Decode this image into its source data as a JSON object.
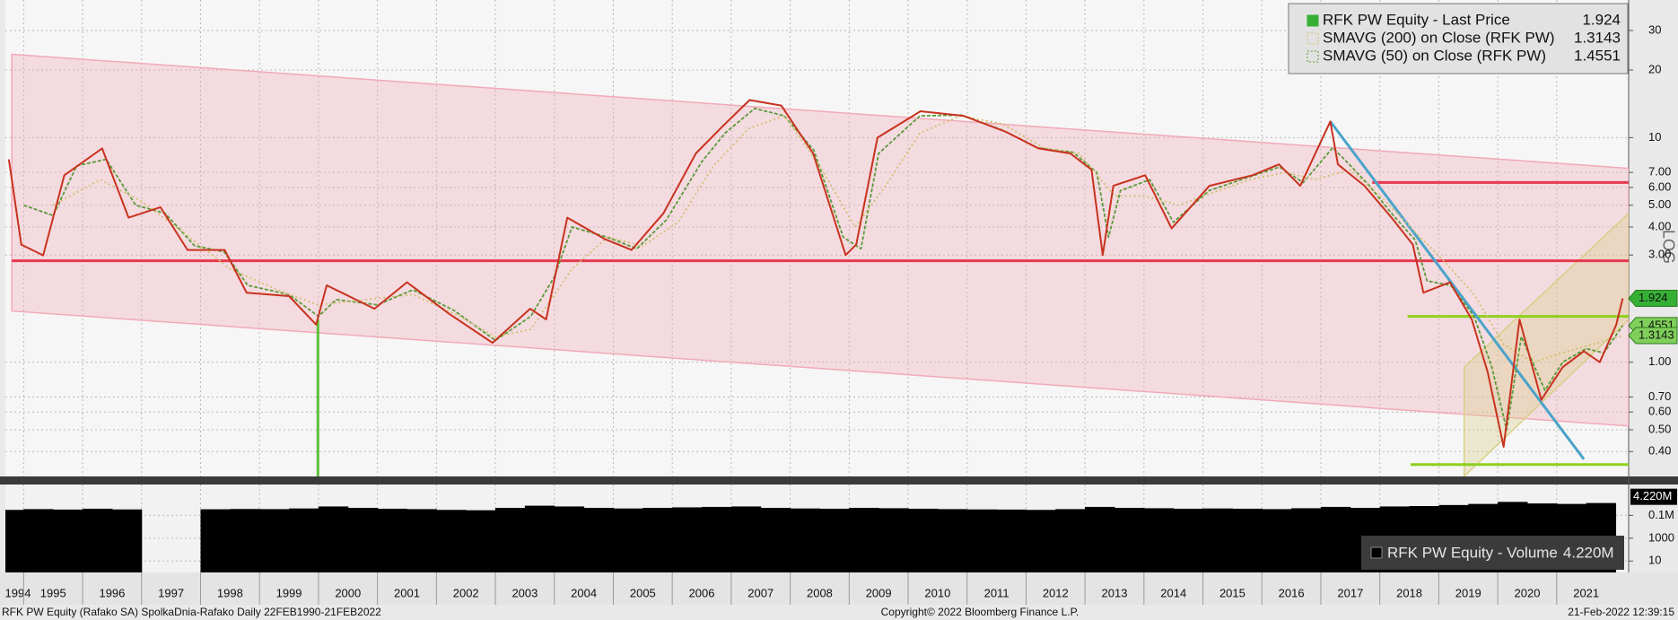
{
  "chart_data": [
    {
      "type": "line",
      "ylabel": "LOG",
      "log_y": true,
      "grid": true,
      "legend_position": "top-right",
      "xlim": [
        1994.69,
        2022.22
      ],
      "ylim": [
        0.31,
        41
      ],
      "xticks": [
        1994,
        1995,
        1996,
        1997,
        1998,
        1999,
        2000,
        2001,
        2002,
        2003,
        2004,
        2005,
        2006,
        2007,
        2008,
        2009,
        2010,
        2011,
        2012,
        2013,
        2014,
        2015,
        2016,
        2017,
        2018,
        2019,
        2020,
        2021
      ],
      "yticks": [
        30,
        20,
        10,
        {
          "value": 7,
          "label": "7.00"
        },
        {
          "value": 6,
          "label": "6.00"
        },
        {
          "value": 5,
          "label": "5.00"
        },
        {
          "value": 4,
          "label": "4.00"
        },
        {
          "value": 3,
          "label": "3.00"
        },
        {
          "value": 1,
          "label": "1.00"
        },
        {
          "value": 0.7,
          "label": "0.70"
        },
        {
          "value": 0.6,
          "label": "0.60"
        },
        {
          "value": 0.5,
          "label": "0.50"
        },
        {
          "value": 0.4,
          "label": "0.40"
        }
      ],
      "series": [
        {
          "name": "RFK PW Equity - Last Price",
          "color": "#35b035",
          "line_color": "#c8321e",
          "last_value": 1.924,
          "x": [
            1994.75,
            1994.96,
            1995.33,
            1995.69,
            1996.33,
            1996.78,
            1997.32,
            1997.78,
            1998.41,
            1998.78,
            1999.5,
            1999.96,
            2000.14,
            2000.95,
            2001.5,
            2002.22,
            2002.95,
            2003.59,
            2003.86,
            2004.22,
            2004.86,
            2005.31,
            2005.85,
            2006.4,
            2006.85,
            2007.31,
            2007.85,
            2008.39,
            2008.94,
            2009.12,
            2009.48,
            2010.21,
            2010.94,
            2011.66,
            2012.21,
            2012.75,
            2013.11,
            2013.3,
            2013.48,
            2014.02,
            2014.47,
            2015.11,
            2015.84,
            2016.29,
            2016.65,
            2017.16,
            2017.29,
            2017.74,
            2018.2,
            2018.56,
            2018.74,
            2019.19,
            2019.56,
            2019.83,
            2020.1,
            2020.37,
            2020.74,
            2021.1,
            2021.46,
            2021.73,
            2022.01,
            2022.12
          ],
          "values": [
            8.0,
            3.34,
            2.99,
            6.8,
            8.95,
            4.4,
            4.9,
            3.16,
            3.16,
            2.04,
            1.97,
            1.47,
            2.2,
            1.73,
            2.27,
            1.64,
            1.22,
            1.73,
            1.55,
            4.4,
            3.53,
            3.16,
            4.6,
            8.5,
            11.2,
            14.7,
            13.9,
            8.5,
            3.0,
            3.34,
            10,
            13.1,
            12.5,
            10.6,
            8.95,
            8.5,
            7.2,
            3.0,
            6.1,
            6.8,
            3.94,
            6.1,
            6.8,
            7.6,
            6.1,
            11.8,
            7.6,
            6.1,
            4.4,
            3.34,
            2.04,
            2.27,
            1.55,
            0.9,
            0.42,
            1.55,
            0.68,
            0.95,
            1.12,
            1.0,
            1.47,
            1.924
          ]
        },
        {
          "name": "SMAVG (200)  on Close (RFK PW)",
          "color": "#cfc070",
          "last_value": 1.3143,
          "x": [
            1995.5,
            1996.3,
            1997.0,
            1997.7,
            1998.5,
            1999.3,
            2000.0,
            2000.8,
            2001.6,
            2002.4,
            2003.0,
            2003.6,
            2004.3,
            2004.9,
            2005.5,
            2006.1,
            2006.7,
            2007.3,
            2007.9,
            2008.5,
            2009.1,
            2009.6,
            2010.2,
            2010.9,
            2011.6,
            2012.3,
            2012.9,
            2013.5,
            2014.0,
            2014.6,
            2015.1,
            2015.8,
            2016.4,
            2016.9,
            2017.5,
            2018.1,
            2018.6,
            2019.1,
            2019.6,
            2020.1,
            2020.6,
            2021.1,
            2021.6,
            2022.12
          ],
          "values": [
            5.0,
            6.5,
            5.2,
            3.8,
            2.6,
            2.1,
            1.8,
            1.9,
            2.0,
            1.6,
            1.3,
            1.4,
            2.6,
            3.6,
            3.3,
            4.2,
            7.5,
            11.0,
            12.5,
            7.5,
            4.0,
            6.0,
            10.5,
            12.5,
            11.5,
            9.0,
            8.5,
            5.5,
            5.5,
            5.0,
            5.6,
            6.5,
            7.0,
            6.5,
            7.2,
            5.2,
            3.8,
            2.8,
            2.0,
            1.2,
            1.0,
            1.1,
            1.2,
            1.3143
          ]
        },
        {
          "name": "SMAVG (50)  on Close (RFK PW)",
          "color": "#5a9a3a",
          "last_value": 1.4551,
          "x": [
            1995.0,
            1995.5,
            1995.9,
            1996.4,
            1996.9,
            1997.4,
            1997.9,
            1998.4,
            1998.8,
            1999.5,
            2000.0,
            2000.3,
            2001.0,
            2001.6,
            2002.3,
            2003.0,
            2003.6,
            2004.0,
            2004.3,
            2004.9,
            2005.4,
            2005.9,
            2006.5,
            2006.9,
            2007.4,
            2007.9,
            2008.4,
            2008.9,
            2009.2,
            2009.5,
            2010.2,
            2010.9,
            2011.6,
            2012.2,
            2012.8,
            2013.2,
            2013.4,
            2013.6,
            2014.1,
            2014.5,
            2015.1,
            2015.8,
            2016.3,
            2016.7,
            2017.2,
            2017.4,
            2017.8,
            2018.2,
            2018.6,
            2018.8,
            2019.2,
            2019.6,
            2019.9,
            2020.15,
            2020.4,
            2020.8,
            2021.1,
            2021.5,
            2021.8,
            2022.12
          ],
          "values": [
            5.0,
            4.5,
            7.5,
            8.0,
            5.0,
            4.6,
            3.3,
            3.1,
            2.2,
            2.0,
            1.6,
            1.9,
            1.8,
            2.1,
            1.7,
            1.25,
            1.6,
            2.4,
            4.0,
            3.6,
            3.2,
            4.3,
            7.8,
            10.5,
            13.5,
            12.5,
            8.8,
            3.6,
            3.2,
            8.5,
            12.5,
            12.6,
            10.8,
            9.0,
            8.6,
            7.0,
            3.6,
            5.8,
            6.5,
            4.2,
            5.8,
            6.7,
            7.4,
            6.3,
            9.0,
            8.0,
            6.2,
            4.6,
            3.5,
            2.3,
            2.2,
            1.6,
            0.95,
            0.5,
            1.3,
            0.75,
            1.0,
            1.15,
            1.1,
            1.4551
          ]
        }
      ],
      "bands": [
        {
          "color": "#f2a9b8",
          "x": [
            1994.8,
            2022.22
          ],
          "upper": [
            23.5,
            7.3
          ],
          "lower": [
            1.69,
            0.52
          ]
        },
        {
          "color": "#d9cf86",
          "x": [
            2019.43,
            2022.22
          ],
          "upper": [
            0.95,
            4.6
          ],
          "lower": [
            0.31,
            1.55
          ]
        }
      ],
      "lines": [
        {
          "color": "#e8384f",
          "x": [
            1994.8,
            2022.22
          ],
          "y": [
            2.83,
            2.83
          ]
        },
        {
          "color": "#e8384f",
          "x": [
            2017.87,
            2022.22
          ],
          "y": [
            6.31,
            6.31
          ]
        },
        {
          "color": "#8fd01f",
          "x": [
            2018.47,
            2022.22
          ],
          "y": [
            1.6,
            1.6
          ]
        },
        {
          "color": "#8fd01f",
          "x": [
            2018.52,
            2022.22
          ],
          "y": [
            0.35,
            0.35
          ]
        },
        {
          "color": "#4aa3c9",
          "x": [
            2017.16,
            2021.46
          ],
          "y": [
            11.8,
            0.37
          ]
        },
        {
          "color": "#5bc03a",
          "x": [
            1999.99,
            1999.99
          ],
          "y": [
            1.55,
            0.31
          ]
        }
      ]
    },
    {
      "type": "bar",
      "log_y": true,
      "xlim": [
        1994.69,
        2022.22
      ],
      "ylim": [
        1,
        50000000
      ],
      "yticks": [
        {
          "value": 100000,
          "label": "0.1M"
        },
        1000,
        10
      ],
      "series": [
        {
          "name": "RFK PW Equity - Volume",
          "color": "#000000",
          "last_value": 4220000,
          "last_label": "4.220M",
          "x": [
            1994.75,
            1995.25,
            1995.75,
            1996.25,
            1996.75,
            1997.25,
            1997.75,
            1998.25,
            1998.75,
            1999.25,
            1999.75,
            2000.25,
            2000.75,
            2001.25,
            2001.75,
            2002.25,
            2002.75,
            2003.25,
            2003.75,
            2004.25,
            2004.75,
            2005.25,
            2005.75,
            2006.25,
            2006.75,
            2007.25,
            2007.75,
            2008.25,
            2008.75,
            2009.25,
            2009.75,
            2010.25,
            2010.75,
            2011.25,
            2011.75,
            2012.25,
            2012.75,
            2013.25,
            2013.75,
            2014.25,
            2014.75,
            2015.25,
            2015.75,
            2016.25,
            2016.75,
            2017.25,
            2017.75,
            2018.25,
            2018.75,
            2019.25,
            2019.75,
            2020.25,
            2020.75,
            2021.25,
            2021.75
          ],
          "values": [
            300000,
            350000,
            320000,
            380000,
            330000,
            null,
            null,
            340000,
            360000,
            350000,
            400000,
            600000,
            450000,
            380000,
            350000,
            300000,
            280000,
            450000,
            700000,
            600000,
            450000,
            400000,
            450000,
            500000,
            550000,
            600000,
            450000,
            400000,
            380000,
            450000,
            420000,
            380000,
            350000,
            330000,
            320000,
            300000,
            350000,
            550000,
            450000,
            420000,
            380000,
            400000,
            380000,
            350000,
            420000,
            550000,
            450000,
            600000,
            650000,
            800000,
            1000000,
            1500000,
            1100000,
            1000000,
            1200000
          ]
        }
      ]
    }
  ],
  "footer": {
    "left": "RFK PW Equity (Rafako SA) SpolkaDnia-Rafako  Daily 22FEB1990-21FEB2022",
    "center": "Copyright© 2022 Bloomberg Finance L.P.",
    "right": "21-Feb-2022 12:39:15"
  }
}
